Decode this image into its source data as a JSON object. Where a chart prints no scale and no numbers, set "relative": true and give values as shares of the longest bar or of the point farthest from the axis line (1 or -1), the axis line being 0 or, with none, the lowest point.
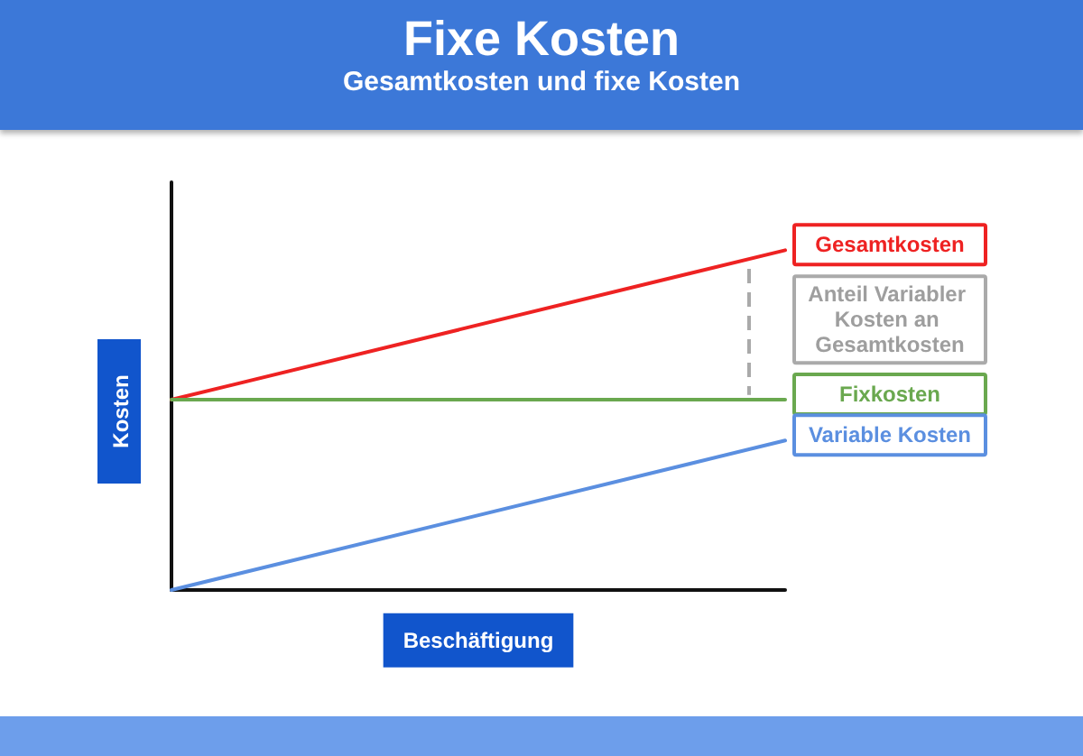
{
  "chart_data": {
    "type": "line",
    "title": "Fixe Kosten",
    "subtitle": "Gesamtkosten und fixe Kosten",
    "xlabel": "Beschäftigung",
    "ylabel": "Kosten",
    "categories": [
      null,
      null
    ],
    "relative": true,
    "marker": "none",
    "series": [
      {
        "name": "Gesamtkosten",
        "color": "#ee2222",
        "values": [
          0.56,
          1
        ]
      },
      {
        "name": "Fixkosten",
        "color": "#6aa84f",
        "values": [
          0.56,
          0.56
        ]
      },
      {
        "name": "Variable Kosten",
        "color": "#5b8fe0",
        "values": [
          0,
          0.44
        ]
      }
    ],
    "annotations": [
      "Anteil Variabler Kosten an Gesamtkosten"
    ]
  }
}
